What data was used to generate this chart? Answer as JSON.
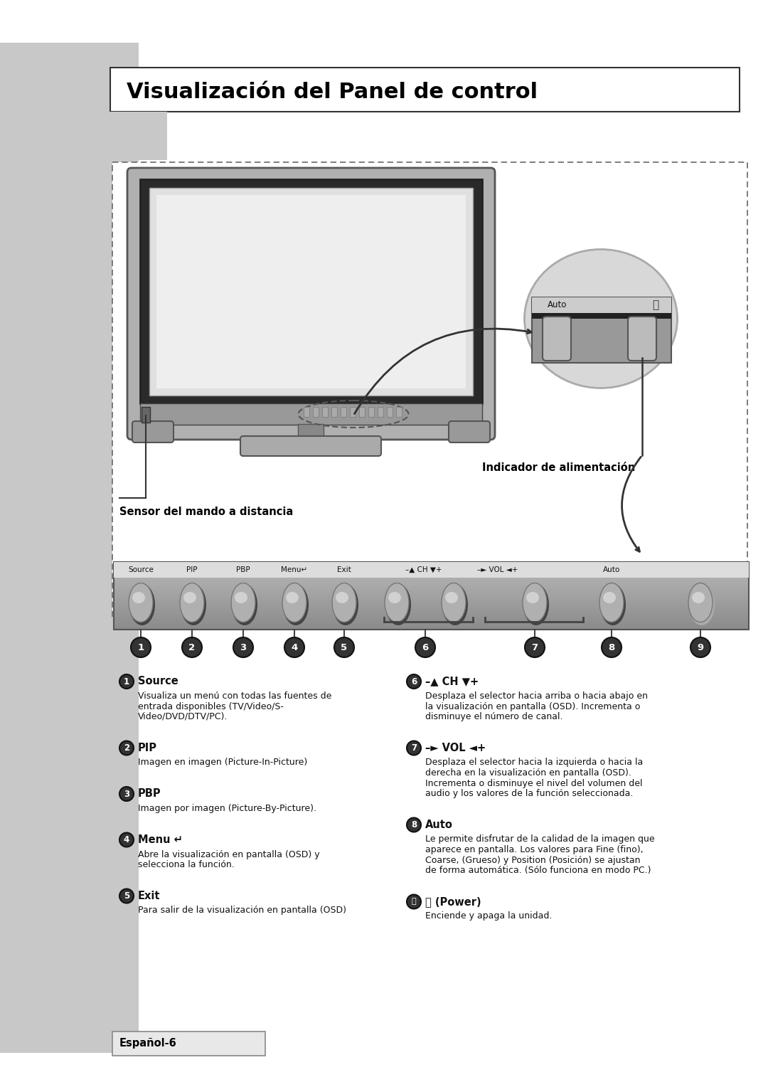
{
  "title": "Visualización del Panel de control",
  "bg_color": "#ffffff",
  "sidebar_color": "#c8c8c8",
  "page_label": "Español-6",
  "sensor_label": "Sensor del mando a distancia",
  "indicator_label": "Indicador de alimentación",
  "button_labels_top": [
    "Source",
    "PIP",
    "PBP",
    "Menu↵",
    "Exit",
    "–▲ CH ▼+",
    "–► VOL ◄+",
    "Auto",
    ""
  ],
  "items_left": [
    {
      "num": "1",
      "title": "Source",
      "body": "Visualiza un menú con todas las fuentes de\nentrada disponibles (TV/Video/S-\nVideo/DVD/DTV/PC)."
    },
    {
      "num": "2",
      "title": "PIP",
      "body": "Imagen en imagen (Picture-In-Picture)"
    },
    {
      "num": "3",
      "title": "PBP",
      "body": "Imagen por imagen (Picture-By-Picture)."
    },
    {
      "num": "4",
      "title": "Menu ↵",
      "body": "Abre la visualización en pantalla (OSD) y\nselecciona la función."
    },
    {
      "num": "5",
      "title": "Exit",
      "body": "Para salir de la visualización en pantalla (OSD)"
    }
  ],
  "items_right": [
    {
      "num": "6",
      "title": "–▲ CH ▼+",
      "body": "Desplaza el selector hacia arriba o hacia abajo en\nla visualización en pantalla (OSD). Incrementa o\ndisminuye el número de canal."
    },
    {
      "num": "7",
      "title": "–► VOL ◄+",
      "body": "Desplaza el selector hacia la izquierda o hacia la\nderecha en la visualización en pantalla (OSD).\nIncrementa o disminuye el nivel del volumen del\naudio y los valores de la función seleccionada."
    },
    {
      "num": "8",
      "title": "Auto",
      "body": "Le permite disfrutar de la calidad de la imagen que\naparece en pantalla. Los valores para Fine (fino),\nCoarse, (Grueso) y Position (Posición) se ajustan\nde forma automática. (Sólo funciona en modo PC.)"
    },
    {
      "num": "9",
      "title": "⏻ (Power)",
      "body": "Enciende y apaga la unidad."
    }
  ]
}
